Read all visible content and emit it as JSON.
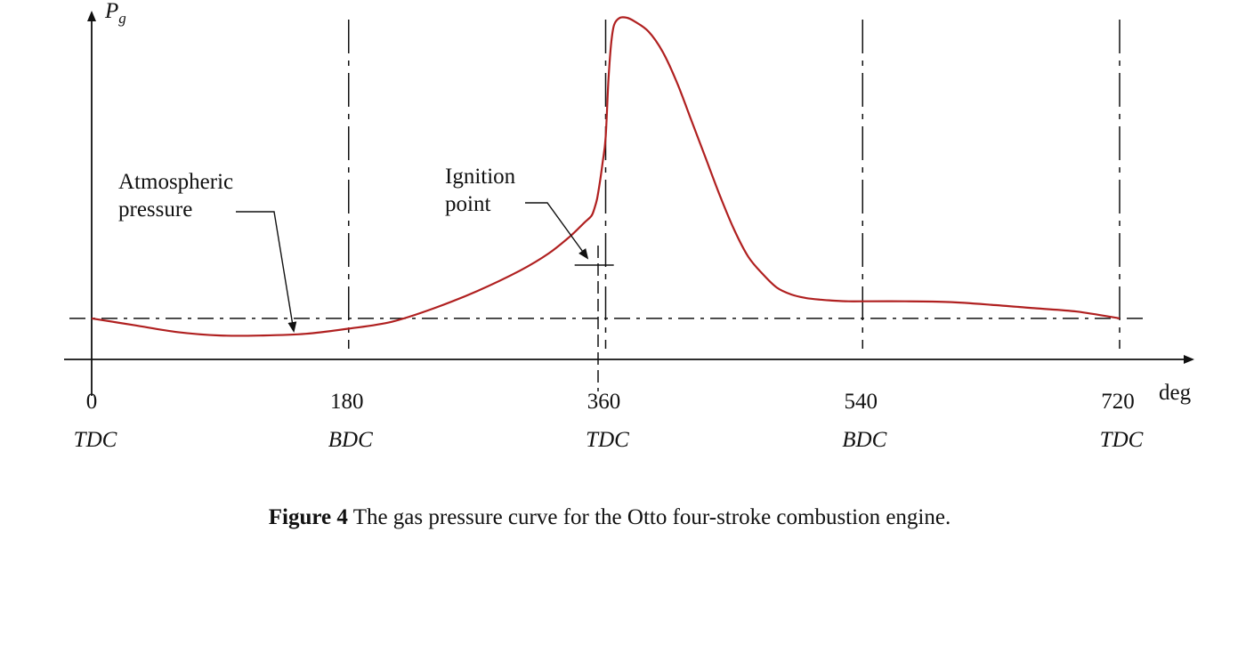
{
  "chart_data": {
    "type": "line",
    "y_axis_label": {
      "main": "P",
      "sub": "g"
    },
    "x_axis_unit": "deg",
    "x_ticks": [
      {
        "value": 0,
        "label": "0",
        "sub_label": "TDC"
      },
      {
        "value": 180,
        "label": "180",
        "sub_label": "BDC"
      },
      {
        "value": 360,
        "label": "360",
        "sub_label": "TDC"
      },
      {
        "value": 540,
        "label": "540",
        "sub_label": "BDC"
      },
      {
        "value": 720,
        "label": "720",
        "sub_label": "TDC"
      }
    ],
    "xlim": [
      0,
      720
    ],
    "ylim": [
      0,
      1
    ],
    "atmospheric_level": 0.12,
    "annotations": [
      {
        "lines": [
          "Atmospheric",
          "pressure"
        ],
        "target_x": 145,
        "target_y": 0.12
      },
      {
        "lines": [
          "Ignition",
          "point"
        ],
        "target_x": 352,
        "target_y": 0.4
      }
    ],
    "series": [
      {
        "color": "#b02020",
        "x": [
          0,
          30,
          60,
          90,
          120,
          150,
          180,
          210,
          240,
          270,
          300,
          320,
          335,
          345,
          350,
          352,
          354,
          356,
          358,
          360,
          362,
          364,
          366,
          370,
          375,
          380,
          390,
          400,
          410,
          420,
          430,
          440,
          450,
          460,
          470,
          480,
          490,
          500,
          510,
          520,
          530,
          540,
          570,
          600,
          630,
          660,
          690,
          720
        ],
        "y": [
          0.12,
          0.1,
          0.08,
          0.07,
          0.07,
          0.075,
          0.09,
          0.11,
          0.15,
          0.2,
          0.26,
          0.31,
          0.36,
          0.4,
          0.42,
          0.44,
          0.47,
          0.52,
          0.58,
          0.65,
          0.82,
          0.93,
          0.98,
          1.0,
          1.0,
          0.99,
          0.96,
          0.9,
          0.81,
          0.7,
          0.59,
          0.48,
          0.38,
          0.3,
          0.25,
          0.21,
          0.19,
          0.18,
          0.175,
          0.172,
          0.17,
          0.17,
          0.17,
          0.168,
          0.16,
          0.15,
          0.14,
          0.12
        ]
      }
    ]
  },
  "caption": {
    "figure_label": "Figure 4",
    "text": " The gas pressure curve for the Otto four-stroke combustion engine."
  }
}
